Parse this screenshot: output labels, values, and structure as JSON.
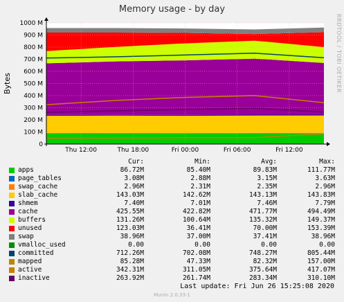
{
  "title": "Memory usage - by day",
  "side_text": "RRDTOOL / TOBI OETIKER",
  "ylabel": "Bytes",
  "chart_data": {
    "type": "area",
    "title": "Memory usage - by day",
    "ylabel": "Bytes",
    "ylim": [
      0,
      1000
    ],
    "yticks": [
      0,
      100,
      200,
      300,
      400,
      500,
      600,
      700,
      800,
      900,
      1000
    ],
    "ytick_labels": [
      "0",
      "100 M",
      "200 M",
      "300 M",
      "400 M",
      "500 M",
      "600 M",
      "700 M",
      "800 M",
      "900 M",
      "1000 M"
    ],
    "xticks": [
      {
        "label": "Thu 12:00",
        "hour": 12
      },
      {
        "label": "Thu 18:00",
        "hour": 18
      },
      {
        "label": "Fri 00:00",
        "hour": 24
      },
      {
        "label": "Fri 06:00",
        "hour": 30
      },
      {
        "label": "Fri 12:00",
        "hour": 36
      }
    ],
    "x_range_hours": [
      8,
      40
    ],
    "grid": true,
    "stacked_series": [
      {
        "name": "apps",
        "color": "#00cc00",
        "values": [
          86,
          87,
          86,
          87,
          87
        ]
      },
      {
        "name": "page_tables",
        "color": "#0066b3",
        "values": [
          3,
          3,
          3,
          3,
          3
        ]
      },
      {
        "name": "swap_cache",
        "color": "#ff8000",
        "values": [
          2,
          2,
          2,
          3,
          3
        ]
      },
      {
        "name": "slab_cache",
        "color": "#ffcc00",
        "values": [
          143,
          143,
          143,
          143,
          143
        ]
      },
      {
        "name": "shmem",
        "color": "#330099",
        "values": [
          7,
          7,
          7,
          7,
          7
        ]
      },
      {
        "name": "cache",
        "color": "#990099",
        "values": [
          425,
          440,
          450,
          462,
          426
        ]
      },
      {
        "name": "buffers",
        "color": "#ccff00",
        "values": [
          101,
          120,
          140,
          148,
          131
        ]
      },
      {
        "name": "unused",
        "color": "#ff0000",
        "values": [
          153,
          118,
          86,
          55,
          123
        ]
      },
      {
        "name": "swap",
        "color": "#808080",
        "values": [
          37,
          37,
          37,
          38,
          39
        ]
      }
    ],
    "line_series": [
      {
        "name": "committed",
        "color": "#00436b",
        "values": [
          710,
          720,
          735,
          750,
          712
        ]
      },
      {
        "name": "mapped",
        "color": "#b8860b",
        "values": [
          48,
          50,
          52,
          53,
          85
        ]
      },
      {
        "name": "active",
        "color": "#c87f00",
        "values": [
          325,
          360,
          385,
          400,
          342
        ]
      },
      {
        "name": "inactive",
        "color": "#660066",
        "values": [
          262,
          275,
          285,
          295,
          264
        ]
      }
    ],
    "series_x_hours": [
      8,
      16,
      24,
      32,
      40
    ]
  },
  "legend": {
    "headers": [
      "Cur:",
      "Min:",
      "Avg:",
      "Max:"
    ],
    "rows": [
      {
        "name": "apps",
        "color": "#00cc00",
        "cur": "86.72M",
        "min": "85.40M",
        "avg": "89.83M",
        "max": "111.77M"
      },
      {
        "name": "page_tables",
        "color": "#0066b3",
        "cur": "3.08M",
        "min": "2.88M",
        "avg": "3.15M",
        "max": "3.63M"
      },
      {
        "name": "swap_cache",
        "color": "#ff8000",
        "cur": "2.96M",
        "min": "2.31M",
        "avg": "2.35M",
        "max": "2.96M"
      },
      {
        "name": "slab_cache",
        "color": "#ffcc00",
        "cur": "143.03M",
        "min": "142.62M",
        "avg": "143.13M",
        "max": "143.83M"
      },
      {
        "name": "shmem",
        "color": "#330099",
        "cur": "7.40M",
        "min": "7.01M",
        "avg": "7.46M",
        "max": "7.79M"
      },
      {
        "name": "cache",
        "color": "#990099",
        "cur": "425.55M",
        "min": "422.82M",
        "avg": "471.77M",
        "max": "494.49M"
      },
      {
        "name": "buffers",
        "color": "#ccff00",
        "cur": "131.26M",
        "min": "100.64M",
        "avg": "135.32M",
        "max": "149.37M"
      },
      {
        "name": "unused",
        "color": "#ff0000",
        "cur": "123.03M",
        "min": "36.41M",
        "avg": "70.00M",
        "max": "153.39M"
      },
      {
        "name": "swap",
        "color": "#808080",
        "cur": "38.96M",
        "min": "37.00M",
        "avg": "37.41M",
        "max": "38.96M"
      },
      {
        "name": "vmalloc_used",
        "color": "#008f00",
        "cur": "0.00",
        "min": "0.00",
        "avg": "0.00",
        "max": "0.00"
      },
      {
        "name": "committed",
        "color": "#00436b",
        "cur": "712.26M",
        "min": "702.08M",
        "avg": "748.27M",
        "max": "805.44M"
      },
      {
        "name": "mapped",
        "color": "#b8860b",
        "cur": "85.28M",
        "min": "47.33M",
        "avg": "82.32M",
        "max": "157.00M"
      },
      {
        "name": "active",
        "color": "#c87f00",
        "cur": "342.31M",
        "min": "311.05M",
        "avg": "375.64M",
        "max": "417.07M"
      },
      {
        "name": "inactive",
        "color": "#660066",
        "cur": "263.92M",
        "min": "261.74M",
        "avg": "283.34M",
        "max": "310.10M"
      }
    ]
  },
  "last_update": "Last update:  Fri Jun 26 15:25:08 2020",
  "munin_version": "Munin 2.0.33-1"
}
